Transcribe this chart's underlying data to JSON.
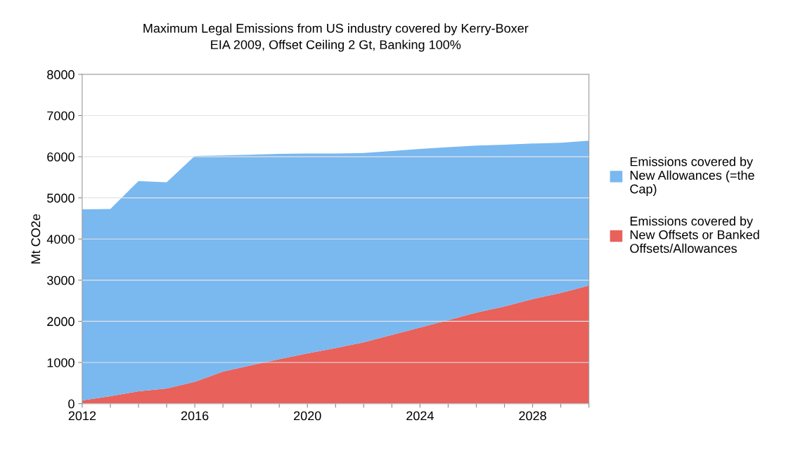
{
  "chart_data": {
    "type": "area",
    "title": "Maximum Legal Emissions from US industry covered by Kerry-Boxer\nEIA 2009, Offset Ceiling 2 Gt, Banking 100%",
    "ylabel": "Mt CO2e",
    "stacked": true,
    "x": [
      2012,
      2013,
      2014,
      2015,
      2016,
      2017,
      2018,
      2019,
      2020,
      2021,
      2022,
      2023,
      2024,
      2025,
      2026,
      2027,
      2028,
      2029,
      2030
    ],
    "series": [
      {
        "name": "Emissions covered by New Offsets or Banked Offsets/Allowances",
        "color": "#e8615a",
        "values": [
          80,
          180,
          300,
          370,
          530,
          780,
          930,
          1080,
          1220,
          1350,
          1490,
          1670,
          1850,
          2030,
          2210,
          2360,
          2540,
          2690,
          2870
        ]
      },
      {
        "name": "Emissions covered by New Allowances (=the Cap)",
        "color": "#7ab8f0",
        "values": [
          4640,
          4550,
          5110,
          5010,
          5490,
          5250,
          5120,
          4990,
          4860,
          4730,
          4600,
          4470,
          4340,
          4200,
          4060,
          3930,
          3780,
          3650,
          3520
        ]
      }
    ],
    "xlim": [
      2012,
      2030
    ],
    "xticks": [
      2012,
      {
        "value": 2013,
        "label": null
      },
      {
        "value": 2014,
        "label": null
      },
      {
        "value": 2015,
        "label": null
      },
      2016,
      {
        "value": 2017,
        "label": null
      },
      {
        "value": 2018,
        "label": null
      },
      {
        "value": 2019,
        "label": null
      },
      2020,
      {
        "value": 2021,
        "label": null
      },
      {
        "value": 2022,
        "label": null
      },
      {
        "value": 2023,
        "label": null
      },
      2024,
      {
        "value": 2025,
        "label": null
      },
      {
        "value": 2026,
        "label": null
      },
      {
        "value": 2027,
        "label": null
      },
      2028,
      {
        "value": 2029,
        "label": null
      },
      {
        "value": 2030,
        "label": null
      }
    ],
    "ylim": [
      0,
      8000
    ],
    "yticks": [
      0,
      1000,
      2000,
      3000,
      4000,
      5000,
      6000,
      7000,
      8000
    ],
    "grid": "y",
    "legend": "right"
  }
}
